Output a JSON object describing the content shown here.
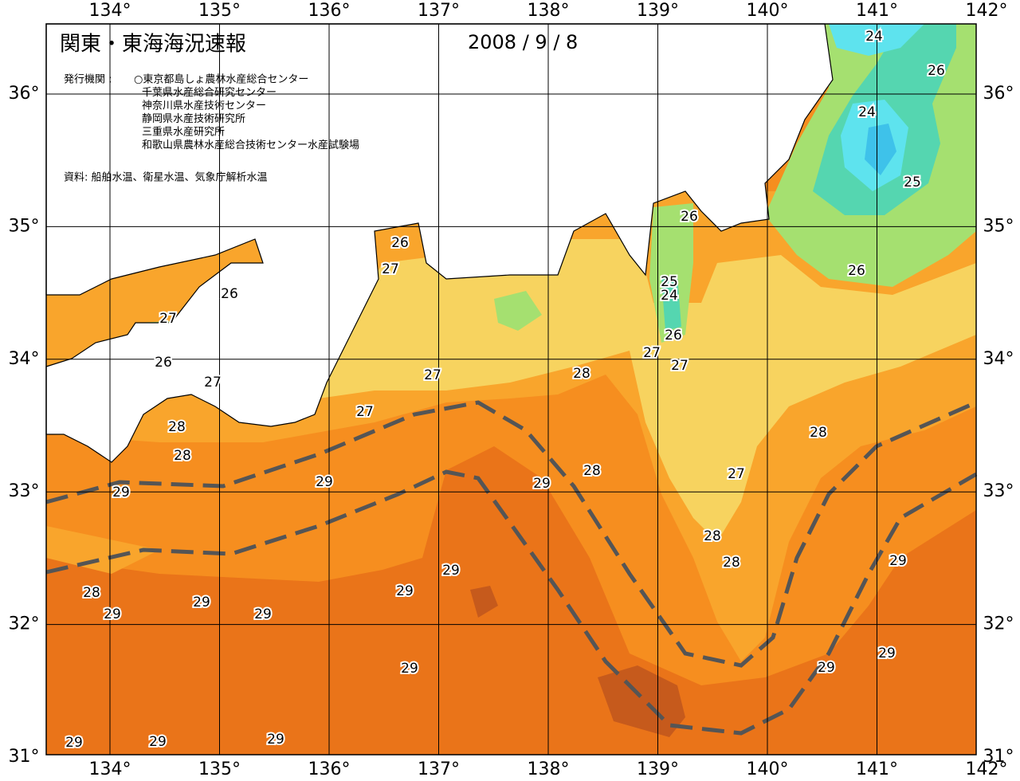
{
  "header": {
    "title": "関東・東海海況速報",
    "date": "2008 / 9 / 8"
  },
  "publishers": {
    "label": "発行機関 :",
    "items": [
      "○東京都島しょ農林水産総合センター",
      "千葉県水産総合研究センター",
      "神奈川県水産技術センター",
      "静岡県水産技術研究所",
      "三重県水産研究所",
      "和歌山県農林水産総合技術センター水産試験場"
    ]
  },
  "source": "資料: 船舶水温、衛星水温、気象庁解析水温",
  "lon_labels": [
    "134°",
    "135°",
    "136°",
    "137°",
    "138°",
    "139°",
    "140°",
    "141°",
    "142°"
  ],
  "lat_labels": [
    "36°",
    "35°",
    "34°",
    "33°",
    "32°",
    "31°"
  ],
  "contour_labels": [
    "24",
    "26",
    "24",
    "25",
    "26",
    "26",
    "26",
    "27",
    "26",
    "27",
    "26",
    "27",
    "25",
    "24",
    "26",
    "27",
    "27",
    "28",
    "27",
    "27",
    "28",
    "28",
    "28",
    "28",
    "27",
    "29",
    "29",
    "29",
    "28",
    "28",
    "29",
    "29",
    "28",
    "29",
    "29",
    "29",
    "29",
    "29",
    "29",
    "29",
    "29",
    "29",
    "29"
  ]
}
